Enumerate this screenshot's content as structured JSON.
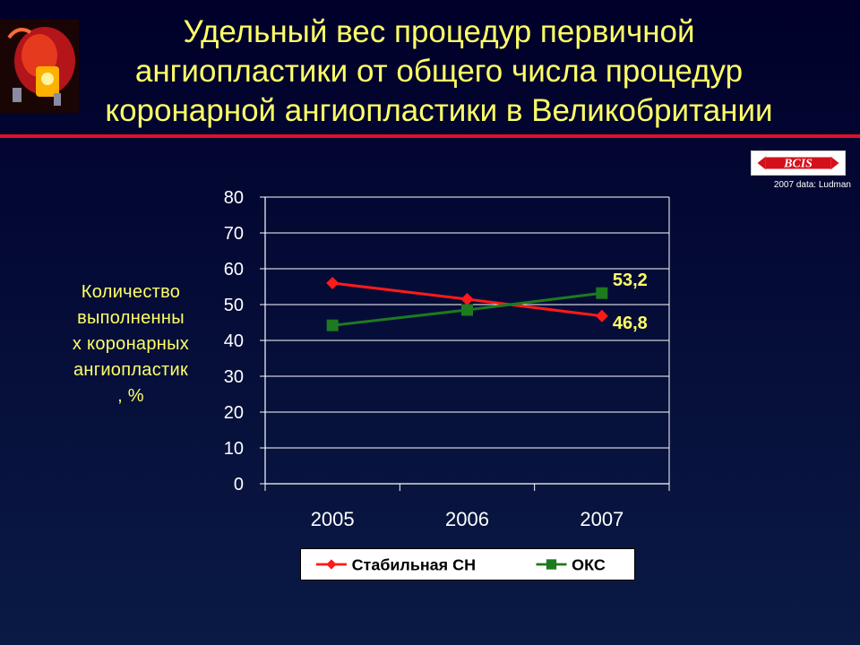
{
  "header": {
    "title_lines": [
      "Удельный вес процедур первичной",
      "ангиопластики от общего числа процедур",
      "коронарной ангиопластики в Великобритании"
    ]
  },
  "badge": {
    "logo_text": "BCIS",
    "caption": "2007 data: Ludman"
  },
  "colors": {
    "title": "#ffff66",
    "accent_rule": "#e0102a",
    "series_stable": "#ff1a1a",
    "series_acs": "#1e7a1e",
    "axis_text": "#ffffff",
    "data_label": "#ffff66"
  },
  "chart_data": {
    "type": "line",
    "ylabel_lines": [
      "Количество",
      "выполненны",
      "х коронарных",
      "ангиопластик",
      ", %"
    ],
    "xlabel": "",
    "categories": [
      "2005",
      "2006",
      "2007"
    ],
    "ylim": [
      0,
      80
    ],
    "yticks": [
      "0",
      "10",
      "20",
      "30",
      "40",
      "50",
      "60",
      "70",
      "80"
    ],
    "grid": true,
    "legend_position": "bottom",
    "series": [
      {
        "name": "Стабильная СН",
        "marker": "diamond",
        "values": [
          56,
          51.5,
          46.8
        ]
      },
      {
        "name": "ОКС",
        "marker": "square",
        "values": [
          44.2,
          48.5,
          53.2
        ]
      }
    ],
    "annotations": [
      {
        "text": "53,2",
        "series": 1,
        "point": 2
      },
      {
        "text": "46,8",
        "series": 0,
        "point": 2
      }
    ]
  }
}
